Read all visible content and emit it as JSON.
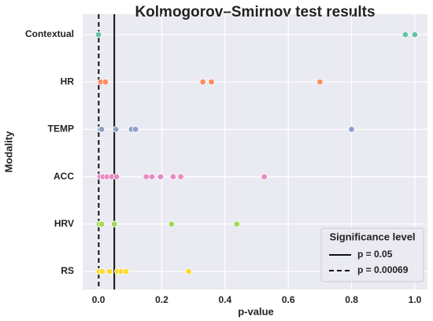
{
  "chart_data": {
    "type": "strip",
    "title": "Kolmogorov–Smirnov test results",
    "xlabel": "p-value",
    "ylabel": "Modality",
    "xlim": [
      -0.05,
      1.04
    ],
    "xticks": [
      {
        "value": 0,
        "label": "0.0"
      },
      0.2,
      0.4,
      0.6,
      0.8,
      {
        "value": 1,
        "label": "1.0"
      }
    ],
    "grid": true,
    "series": [
      {
        "name": "Contextual",
        "color": "#66c2a5",
        "values": [
          0.0,
          0.97,
          1.0
        ]
      },
      {
        "name": "HR",
        "color": "#fc8d62",
        "values": [
          0.007,
          0.022,
          0.33,
          0.357,
          0.7
        ]
      },
      {
        "name": "TEMP",
        "color": "#8da0cb",
        "values": [
          0.005,
          0.01,
          0.055,
          0.104,
          0.117,
          0.8
        ]
      },
      {
        "name": "ACC",
        "color": "#e78ac3",
        "values": [
          0.005,
          0.015,
          0.027,
          0.042,
          0.057,
          0.151,
          0.169,
          0.196,
          0.236,
          0.26,
          0.524
        ]
      },
      {
        "name": "HRV",
        "color": "#a6d854",
        "values": [
          0.002,
          0.01,
          0.05,
          0.231,
          0.437
        ]
      },
      {
        "name": "RS",
        "color": "#ffd92f",
        "values": [
          0.002,
          0.012,
          0.035,
          0.06,
          0.072,
          0.087,
          0.285
        ]
      }
    ],
    "legend": {
      "title": "Significance level",
      "position": "lower right"
    },
    "thresholds": [
      {
        "name": "p = 0.05",
        "value": 0.05,
        "style": "solid"
      },
      {
        "name": "p = 0.00069",
        "value": 0.00069,
        "style": "dashed"
      }
    ]
  }
}
